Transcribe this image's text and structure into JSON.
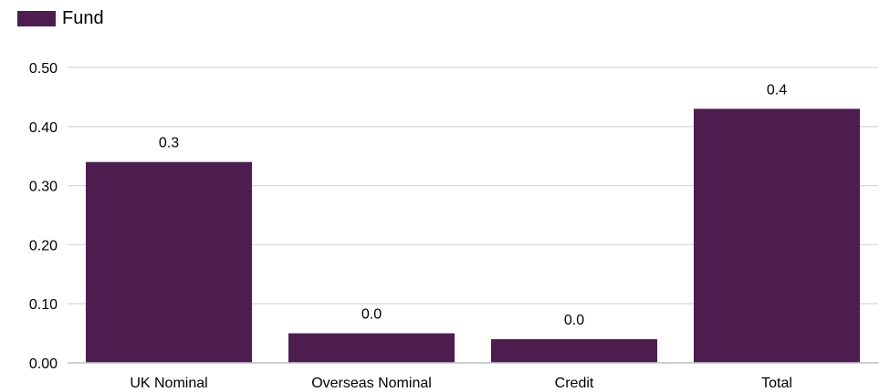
{
  "chart_data": {
    "type": "bar",
    "legend": {
      "position": "top-left",
      "entries": [
        "Fund"
      ]
    },
    "categories": [
      "UK Nominal",
      "Overseas Nominal",
      "Credit",
      "Total"
    ],
    "series": [
      {
        "name": "Fund",
        "color": "#4d1d50",
        "values": [
          0.34,
          0.05,
          0.04,
          0.43
        ]
      }
    ],
    "data_labels": [
      "0.3",
      "0.0",
      "0.0",
      "0.4"
    ],
    "y_ticks": [
      "0.00",
      "0.10",
      "0.20",
      "0.30",
      "0.40",
      "0.50"
    ],
    "ylim": [
      0,
      0.5
    ],
    "grid": true,
    "gridline_color": "#d9d9d9",
    "axis_color": "#bfbfbf"
  }
}
